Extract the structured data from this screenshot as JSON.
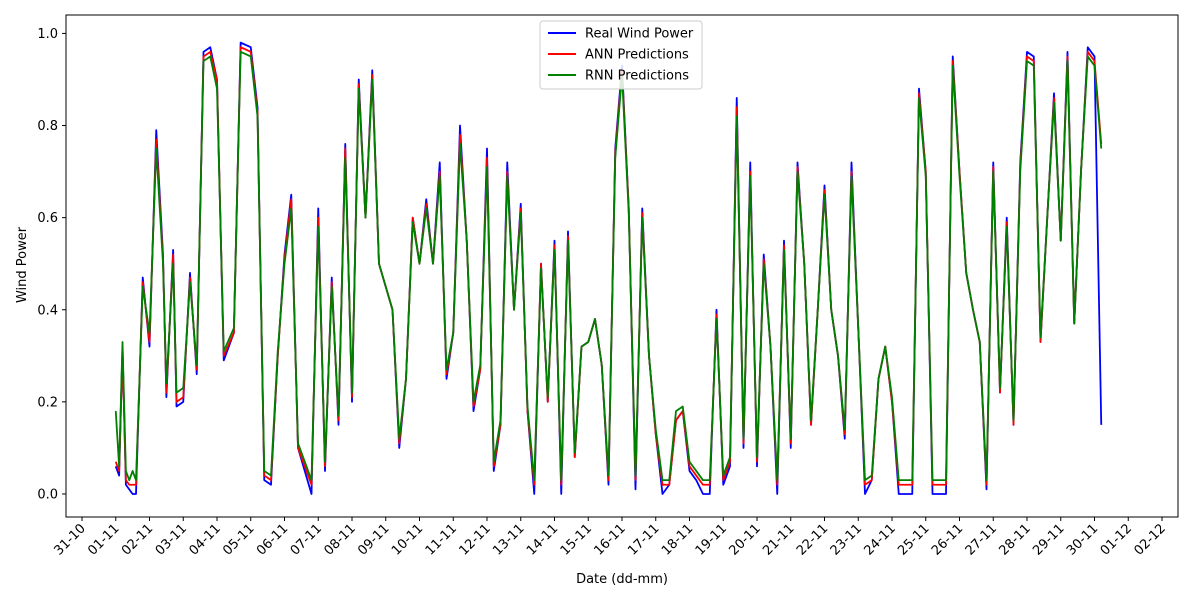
{
  "chart_data": {
    "type": "line",
    "title": "",
    "xlabel": "Date (dd-mm)",
    "ylabel": "Wind Power",
    "xlim": [
      "31-10",
      "02-12"
    ],
    "ylim": [
      -0.05,
      1.04
    ],
    "x_ticks": [
      "31-10",
      "01-11",
      "02-11",
      "03-11",
      "04-11",
      "05-11",
      "06-11",
      "07-11",
      "08-11",
      "09-11",
      "10-11",
      "11-11",
      "12-11",
      "13-11",
      "14-11",
      "15-11",
      "16-11",
      "17-11",
      "18-11",
      "19-11",
      "20-11",
      "21-11",
      "22-11",
      "23-11",
      "24-11",
      "25-11",
      "26-11",
      "27-11",
      "28-11",
      "29-11",
      "30-11",
      "01-12",
      "02-12"
    ],
    "y_ticks": [
      "0.0",
      "0.2",
      "0.4",
      "0.6",
      "0.8",
      "1.0"
    ],
    "grid": false,
    "legend_position": "top-center",
    "x_day_offsets_from_31_10": [
      1.0,
      1.1,
      1.2,
      1.3,
      1.4,
      1.5,
      1.6,
      1.8,
      2.0,
      2.2,
      2.4,
      2.5,
      2.7,
      2.8,
      3.0,
      3.2,
      3.4,
      3.6,
      3.8,
      4.0,
      4.2,
      4.5,
      4.7,
      5.0,
      5.2,
      5.4,
      5.6,
      5.8,
      6.0,
      6.2,
      6.4,
      6.6,
      6.8,
      7.0,
      7.2,
      7.4,
      7.6,
      7.8,
      8.0,
      8.2,
      8.4,
      8.6,
      8.8,
      9.0,
      9.2,
      9.4,
      9.6,
      9.8,
      10.0,
      10.2,
      10.4,
      10.6,
      10.8,
      11.0,
      11.2,
      11.4,
      11.6,
      11.8,
      12.0,
      12.2,
      12.4,
      12.6,
      12.8,
      13.0,
      13.2,
      13.4,
      13.6,
      13.8,
      14.0,
      14.2,
      14.4,
      14.6,
      14.8,
      15.0,
      15.2,
      15.4,
      15.6,
      15.8,
      16.0,
      16.2,
      16.4,
      16.6,
      16.8,
      17.0,
      17.2,
      17.4,
      17.6,
      17.8,
      18.0,
      18.2,
      18.4,
      18.6,
      18.8,
      19.0,
      19.2,
      19.4,
      19.6,
      19.8,
      20.0,
      20.2,
      20.4,
      20.6,
      20.8,
      21.0,
      21.2,
      21.4,
      21.6,
      21.8,
      22.0,
      22.2,
      22.4,
      22.6,
      22.8,
      23.0,
      23.2,
      23.4,
      23.6,
      23.8,
      24.0,
      24.2,
      24.4,
      24.6,
      24.8,
      25.0,
      25.2,
      25.4,
      25.6,
      25.8,
      26.0,
      26.2,
      26.4,
      26.6,
      26.8,
      27.0,
      27.2,
      27.4,
      27.6,
      27.8,
      28.0,
      28.2,
      28.4,
      28.6,
      28.8,
      29.0,
      29.2,
      29.4,
      29.6,
      29.8,
      30.0,
      30.2,
      30.4,
      30.6,
      30.8,
      31.0,
      31.2,
      31.4
    ],
    "series": [
      {
        "name": "Real Wind Power",
        "color": "#0000ff",
        "values": [
          0.06,
          0.04,
          0.32,
          0.02,
          0.01,
          0.0,
          0.0,
          0.47,
          0.32,
          0.79,
          0.52,
          0.21,
          0.53,
          0.19,
          0.2,
          0.48,
          0.26,
          0.96,
          0.97,
          0.9,
          0.29,
          0.35,
          0.98,
          0.97,
          0.84,
          0.03,
          0.02,
          0.3,
          0.52,
          0.65,
          0.1,
          0.05,
          0.0,
          0.62,
          0.05,
          0.47,
          0.15,
          0.76,
          0.2,
          0.9,
          0.6,
          0.92,
          0.5,
          0.45,
          0.4,
          0.1,
          0.25,
          0.6,
          0.5,
          0.64,
          0.5,
          0.72,
          0.25,
          0.35,
          0.8,
          0.55,
          0.18,
          0.27,
          0.75,
          0.05,
          0.15,
          0.72,
          0.4,
          0.63,
          0.18,
          0.0,
          0.5,
          0.2,
          0.55,
          0.0,
          0.57,
          0.08,
          0.32,
          0.33,
          0.38,
          0.28,
          0.02,
          0.75,
          0.93,
          0.62,
          0.01,
          0.62,
          0.3,
          0.13,
          0.0,
          0.02,
          0.16,
          0.18,
          0.05,
          0.03,
          0.0,
          0.0,
          0.4,
          0.02,
          0.06,
          0.86,
          0.1,
          0.72,
          0.06,
          0.52,
          0.32,
          0.0,
          0.55,
          0.1,
          0.72,
          0.5,
          0.15,
          0.4,
          0.67,
          0.4,
          0.3,
          0.12,
          0.72,
          0.36,
          0.0,
          0.03,
          0.25,
          0.32,
          0.2,
          0.0,
          0.0,
          0.0,
          0.88,
          0.7,
          0.0,
          0.0,
          0.0,
          0.95,
          0.7,
          0.48,
          0.4,
          0.33,
          0.01,
          0.72,
          0.22,
          0.6,
          0.15,
          0.72,
          0.96,
          0.95,
          0.33,
          0.6,
          0.87,
          0.55,
          0.96,
          0.37,
          0.7,
          0.97,
          0.95,
          0.15
        ]
      },
      {
        "name": "ANN Predictions",
        "color": "#ff0000",
        "values": [
          0.07,
          0.05,
          0.31,
          0.03,
          0.02,
          0.02,
          0.02,
          0.46,
          0.33,
          0.77,
          0.51,
          0.22,
          0.52,
          0.2,
          0.21,
          0.47,
          0.27,
          0.95,
          0.96,
          0.9,
          0.3,
          0.35,
          0.97,
          0.96,
          0.83,
          0.04,
          0.03,
          0.3,
          0.51,
          0.64,
          0.1,
          0.06,
          0.02,
          0.6,
          0.06,
          0.46,
          0.16,
          0.75,
          0.21,
          0.89,
          0.6,
          0.91,
          0.5,
          0.45,
          0.4,
          0.11,
          0.25,
          0.6,
          0.5,
          0.63,
          0.5,
          0.7,
          0.26,
          0.35,
          0.78,
          0.55,
          0.19,
          0.27,
          0.73,
          0.06,
          0.15,
          0.7,
          0.4,
          0.62,
          0.18,
          0.02,
          0.5,
          0.2,
          0.54,
          0.02,
          0.56,
          0.08,
          0.32,
          0.33,
          0.38,
          0.28,
          0.03,
          0.74,
          0.92,
          0.62,
          0.03,
          0.61,
          0.3,
          0.13,
          0.02,
          0.02,
          0.16,
          0.18,
          0.06,
          0.04,
          0.02,
          0.02,
          0.39,
          0.03,
          0.07,
          0.84,
          0.11,
          0.7,
          0.07,
          0.51,
          0.32,
          0.02,
          0.54,
          0.11,
          0.71,
          0.5,
          0.15,
          0.4,
          0.66,
          0.4,
          0.3,
          0.13,
          0.7,
          0.36,
          0.02,
          0.03,
          0.25,
          0.32,
          0.2,
          0.02,
          0.02,
          0.02,
          0.87,
          0.7,
          0.02,
          0.02,
          0.02,
          0.94,
          0.7,
          0.48,
          0.4,
          0.33,
          0.02,
          0.71,
          0.22,
          0.59,
          0.15,
          0.71,
          0.95,
          0.94,
          0.33,
          0.6,
          0.86,
          0.55,
          0.95,
          0.37,
          0.7,
          0.96,
          0.94,
          0.76
        ]
      },
      {
        "name": "RNN Predictions",
        "color": "#008000",
        "values": [
          0.18,
          0.06,
          0.33,
          0.05,
          0.03,
          0.05,
          0.03,
          0.45,
          0.35,
          0.75,
          0.5,
          0.24,
          0.5,
          0.22,
          0.23,
          0.46,
          0.28,
          0.94,
          0.95,
          0.88,
          0.31,
          0.36,
          0.96,
          0.95,
          0.82,
          0.05,
          0.04,
          0.31,
          0.5,
          0.62,
          0.11,
          0.07,
          0.03,
          0.58,
          0.07,
          0.45,
          0.17,
          0.73,
          0.22,
          0.88,
          0.6,
          0.9,
          0.5,
          0.45,
          0.4,
          0.12,
          0.25,
          0.59,
          0.5,
          0.62,
          0.5,
          0.69,
          0.27,
          0.35,
          0.76,
          0.55,
          0.2,
          0.28,
          0.71,
          0.07,
          0.16,
          0.69,
          0.4,
          0.61,
          0.19,
          0.03,
          0.49,
          0.21,
          0.53,
          0.03,
          0.55,
          0.09,
          0.32,
          0.33,
          0.38,
          0.28,
          0.04,
          0.73,
          0.91,
          0.61,
          0.04,
          0.6,
          0.3,
          0.14,
          0.03,
          0.03,
          0.18,
          0.19,
          0.07,
          0.05,
          0.03,
          0.03,
          0.38,
          0.04,
          0.08,
          0.82,
          0.12,
          0.69,
          0.08,
          0.5,
          0.32,
          0.03,
          0.53,
          0.12,
          0.7,
          0.5,
          0.16,
          0.4,
          0.65,
          0.4,
          0.3,
          0.14,
          0.69,
          0.36,
          0.03,
          0.04,
          0.25,
          0.32,
          0.21,
          0.03,
          0.03,
          0.03,
          0.86,
          0.69,
          0.03,
          0.03,
          0.03,
          0.93,
          0.69,
          0.48,
          0.4,
          0.33,
          0.03,
          0.7,
          0.23,
          0.58,
          0.16,
          0.7,
          0.94,
          0.93,
          0.34,
          0.6,
          0.85,
          0.55,
          0.94,
          0.37,
          0.7,
          0.95,
          0.93,
          0.75
        ]
      }
    ]
  }
}
